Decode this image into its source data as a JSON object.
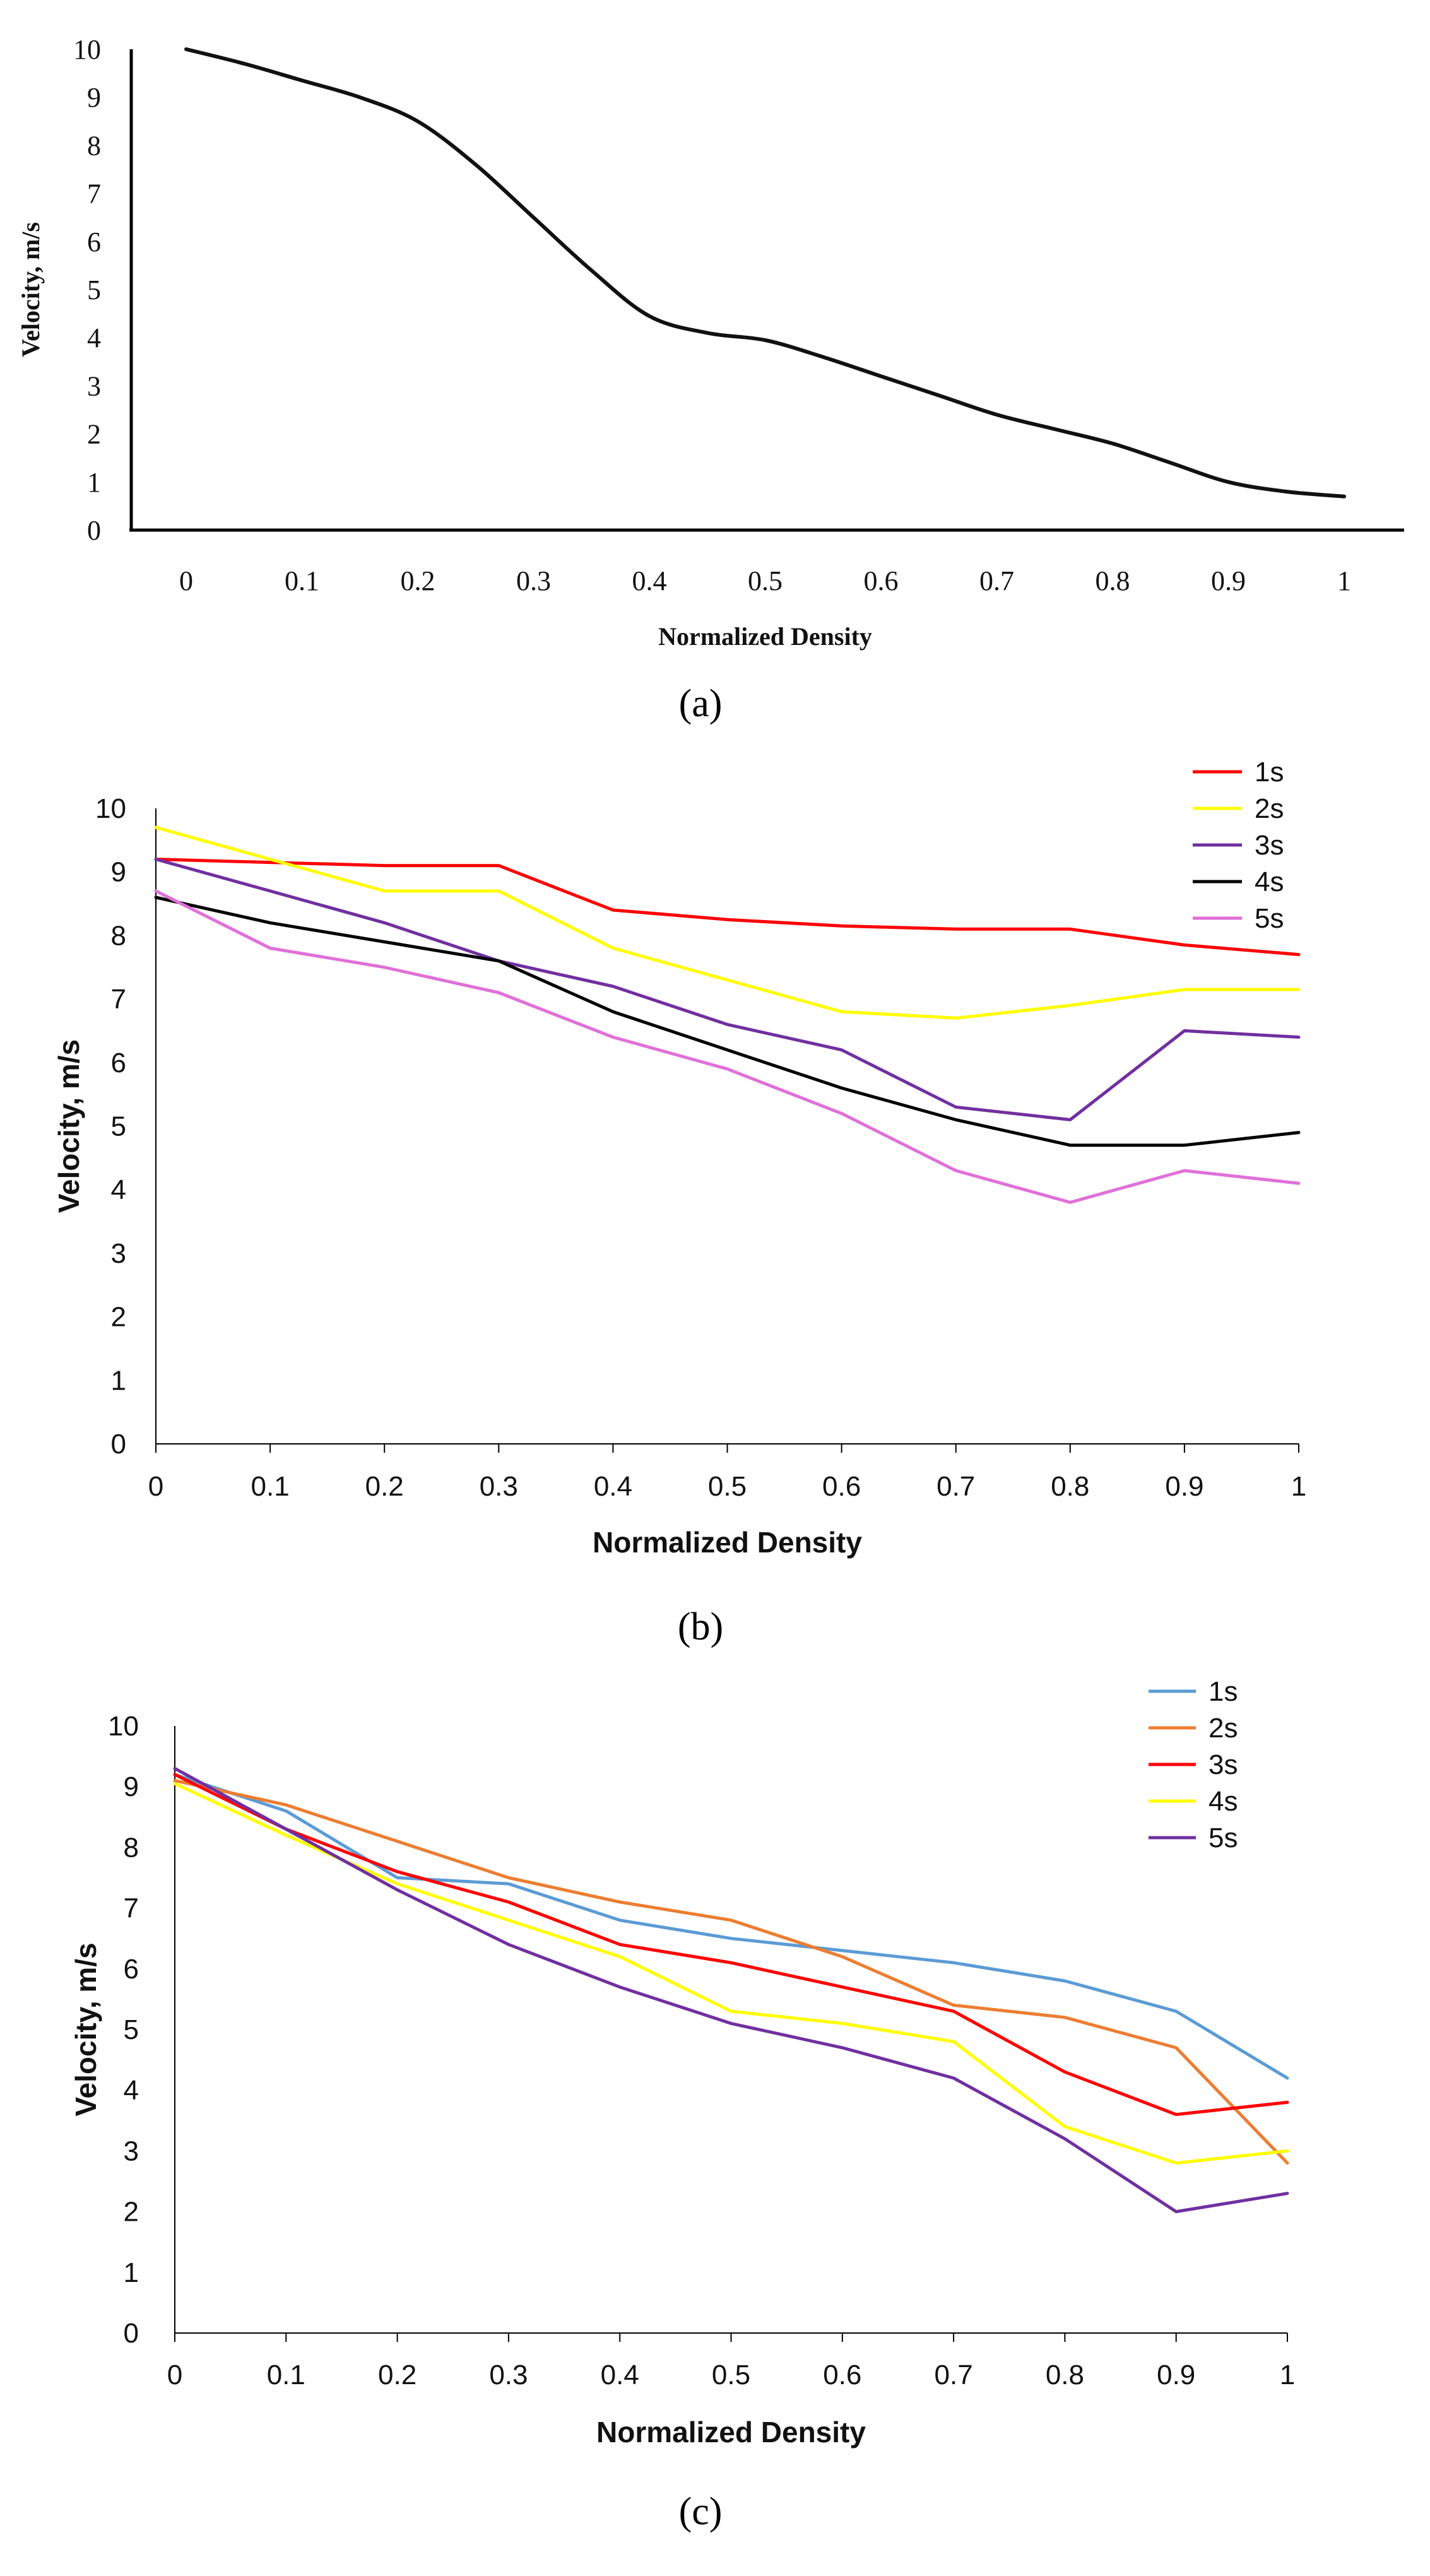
{
  "chart_data": [
    {
      "type": "line",
      "panel": "(a)",
      "title": "",
      "xlabel": "Normalized Density",
      "ylabel": "Velocity, m/s",
      "xlim": [
        0,
        1
      ],
      "ylim": [
        0,
        10
      ],
      "x_ticks": [
        "0",
        "0.1",
        "0.2",
        "0.3",
        "0.4",
        "0.5",
        "0.6",
        "0.7",
        "0.8",
        "0.9",
        "1"
      ],
      "y_ticks": [
        "0",
        "1",
        "2",
        "3",
        "4",
        "5",
        "6",
        "7",
        "8",
        "9",
        "10"
      ],
      "grid": false,
      "legend": "none",
      "series": [
        {
          "color": "#111111",
          "x": [
            0,
            0.05,
            0.1,
            0.15,
            0.2,
            0.25,
            0.3,
            0.35,
            0.4,
            0.45,
            0.5,
            0.55,
            0.6,
            0.65,
            0.7,
            0.75,
            0.8,
            0.85,
            0.9,
            0.95,
            1
          ],
          "y": [
            10,
            9.7,
            9.35,
            9.0,
            8.5,
            7.6,
            6.5,
            5.4,
            4.45,
            4.1,
            3.95,
            3.6,
            3.2,
            2.8,
            2.4,
            2.1,
            1.8,
            1.4,
            1.0,
            0.8,
            0.7
          ]
        }
      ]
    },
    {
      "type": "line",
      "panel": "(b)",
      "title": "",
      "xlabel": "Normalized Density",
      "ylabel": "Velocity, m/s",
      "xlim": [
        0,
        1
      ],
      "ylim": [
        0,
        10
      ],
      "x": [
        0,
        0.1,
        0.2,
        0.3,
        0.4,
        0.5,
        0.6,
        0.7,
        0.8,
        0.9,
        1
      ],
      "x_ticks": [
        "0",
        "0.1",
        "0.2",
        "0.3",
        "0.4",
        "0.5",
        "0.6",
        "0.7",
        "0.8",
        "0.9",
        "1"
      ],
      "y_ticks": [
        "0",
        "1",
        "2",
        "3",
        "4",
        "5",
        "6",
        "7",
        "8",
        "9",
        "10"
      ],
      "grid": false,
      "legend": "top-right",
      "series": [
        {
          "name": "1s",
          "color": "#ff0000",
          "values": [
            9.2,
            9.15,
            9.1,
            9.1,
            8.4,
            8.25,
            8.15,
            8.1,
            8.1,
            7.85,
            7.7
          ]
        },
        {
          "name": "2s",
          "color": "#ffff00",
          "values": [
            9.7,
            9.2,
            8.7,
            8.7,
            7.8,
            7.3,
            6.8,
            6.7,
            6.9,
            7.15,
            7.15
          ]
        },
        {
          "name": "3s",
          "color": "#7030a0",
          "values": [
            9.2,
            8.7,
            8.2,
            7.6,
            7.2,
            6.6,
            6.2,
            5.3,
            5.1,
            6.5,
            6.4
          ]
        },
        {
          "name": "4s",
          "color": "#000000",
          "values": [
            8.6,
            8.2,
            7.9,
            7.6,
            6.8,
            6.2,
            5.6,
            5.1,
            4.7,
            4.7,
            4.9
          ]
        },
        {
          "name": "5s",
          "color": "#e070d8",
          "values": [
            8.7,
            7.8,
            7.5,
            7.1,
            6.4,
            5.9,
            5.2,
            4.3,
            3.8,
            4.3,
            4.1
          ]
        }
      ]
    },
    {
      "type": "line",
      "panel": "(c)",
      "title": "",
      "xlabel": "Normalized Density",
      "ylabel": "Velocity, m/s",
      "xlim": [
        0,
        1
      ],
      "ylim": [
        0,
        10
      ],
      "x": [
        0,
        0.1,
        0.2,
        0.3,
        0.4,
        0.5,
        0.6,
        0.7,
        0.8,
        0.9,
        1
      ],
      "x_ticks": [
        "0",
        "0.1",
        "0.2",
        "0.3",
        "0.4",
        "0.5",
        "0.6",
        "0.7",
        "0.8",
        "0.9",
        "1"
      ],
      "y_ticks": [
        "0",
        "1",
        "2",
        "3",
        "4",
        "5",
        "6",
        "7",
        "8",
        "9",
        "10"
      ],
      "grid": false,
      "legend": "top-right",
      "series": [
        {
          "name": "1s",
          "color": "#5b9bd5",
          "values": [
            9.2,
            8.6,
            7.5,
            7.4,
            6.8,
            6.5,
            6.3,
            6.1,
            5.8,
            5.3,
            4.2
          ]
        },
        {
          "name": "2s",
          "color": "#ed7d31",
          "values": [
            9.1,
            8.7,
            8.1,
            7.5,
            7.1,
            6.8,
            6.2,
            5.4,
            5.2,
            4.7,
            2.8
          ]
        },
        {
          "name": "3s",
          "color": "#ff0000",
          "values": [
            9.2,
            8.3,
            7.6,
            7.1,
            6.4,
            6.1,
            5.7,
            5.3,
            4.3,
            3.6,
            3.8
          ]
        },
        {
          "name": "4s",
          "color": "#ffff00",
          "values": [
            9.05,
            8.2,
            7.4,
            6.8,
            6.2,
            5.3,
            5.1,
            4.8,
            3.4,
            2.8,
            3.0
          ]
        },
        {
          "name": "5s",
          "color": "#7030a0",
          "values": [
            9.3,
            8.3,
            7.3,
            6.4,
            5.7,
            5.1,
            4.7,
            4.2,
            3.2,
            2.0,
            2.3
          ]
        }
      ]
    }
  ]
}
